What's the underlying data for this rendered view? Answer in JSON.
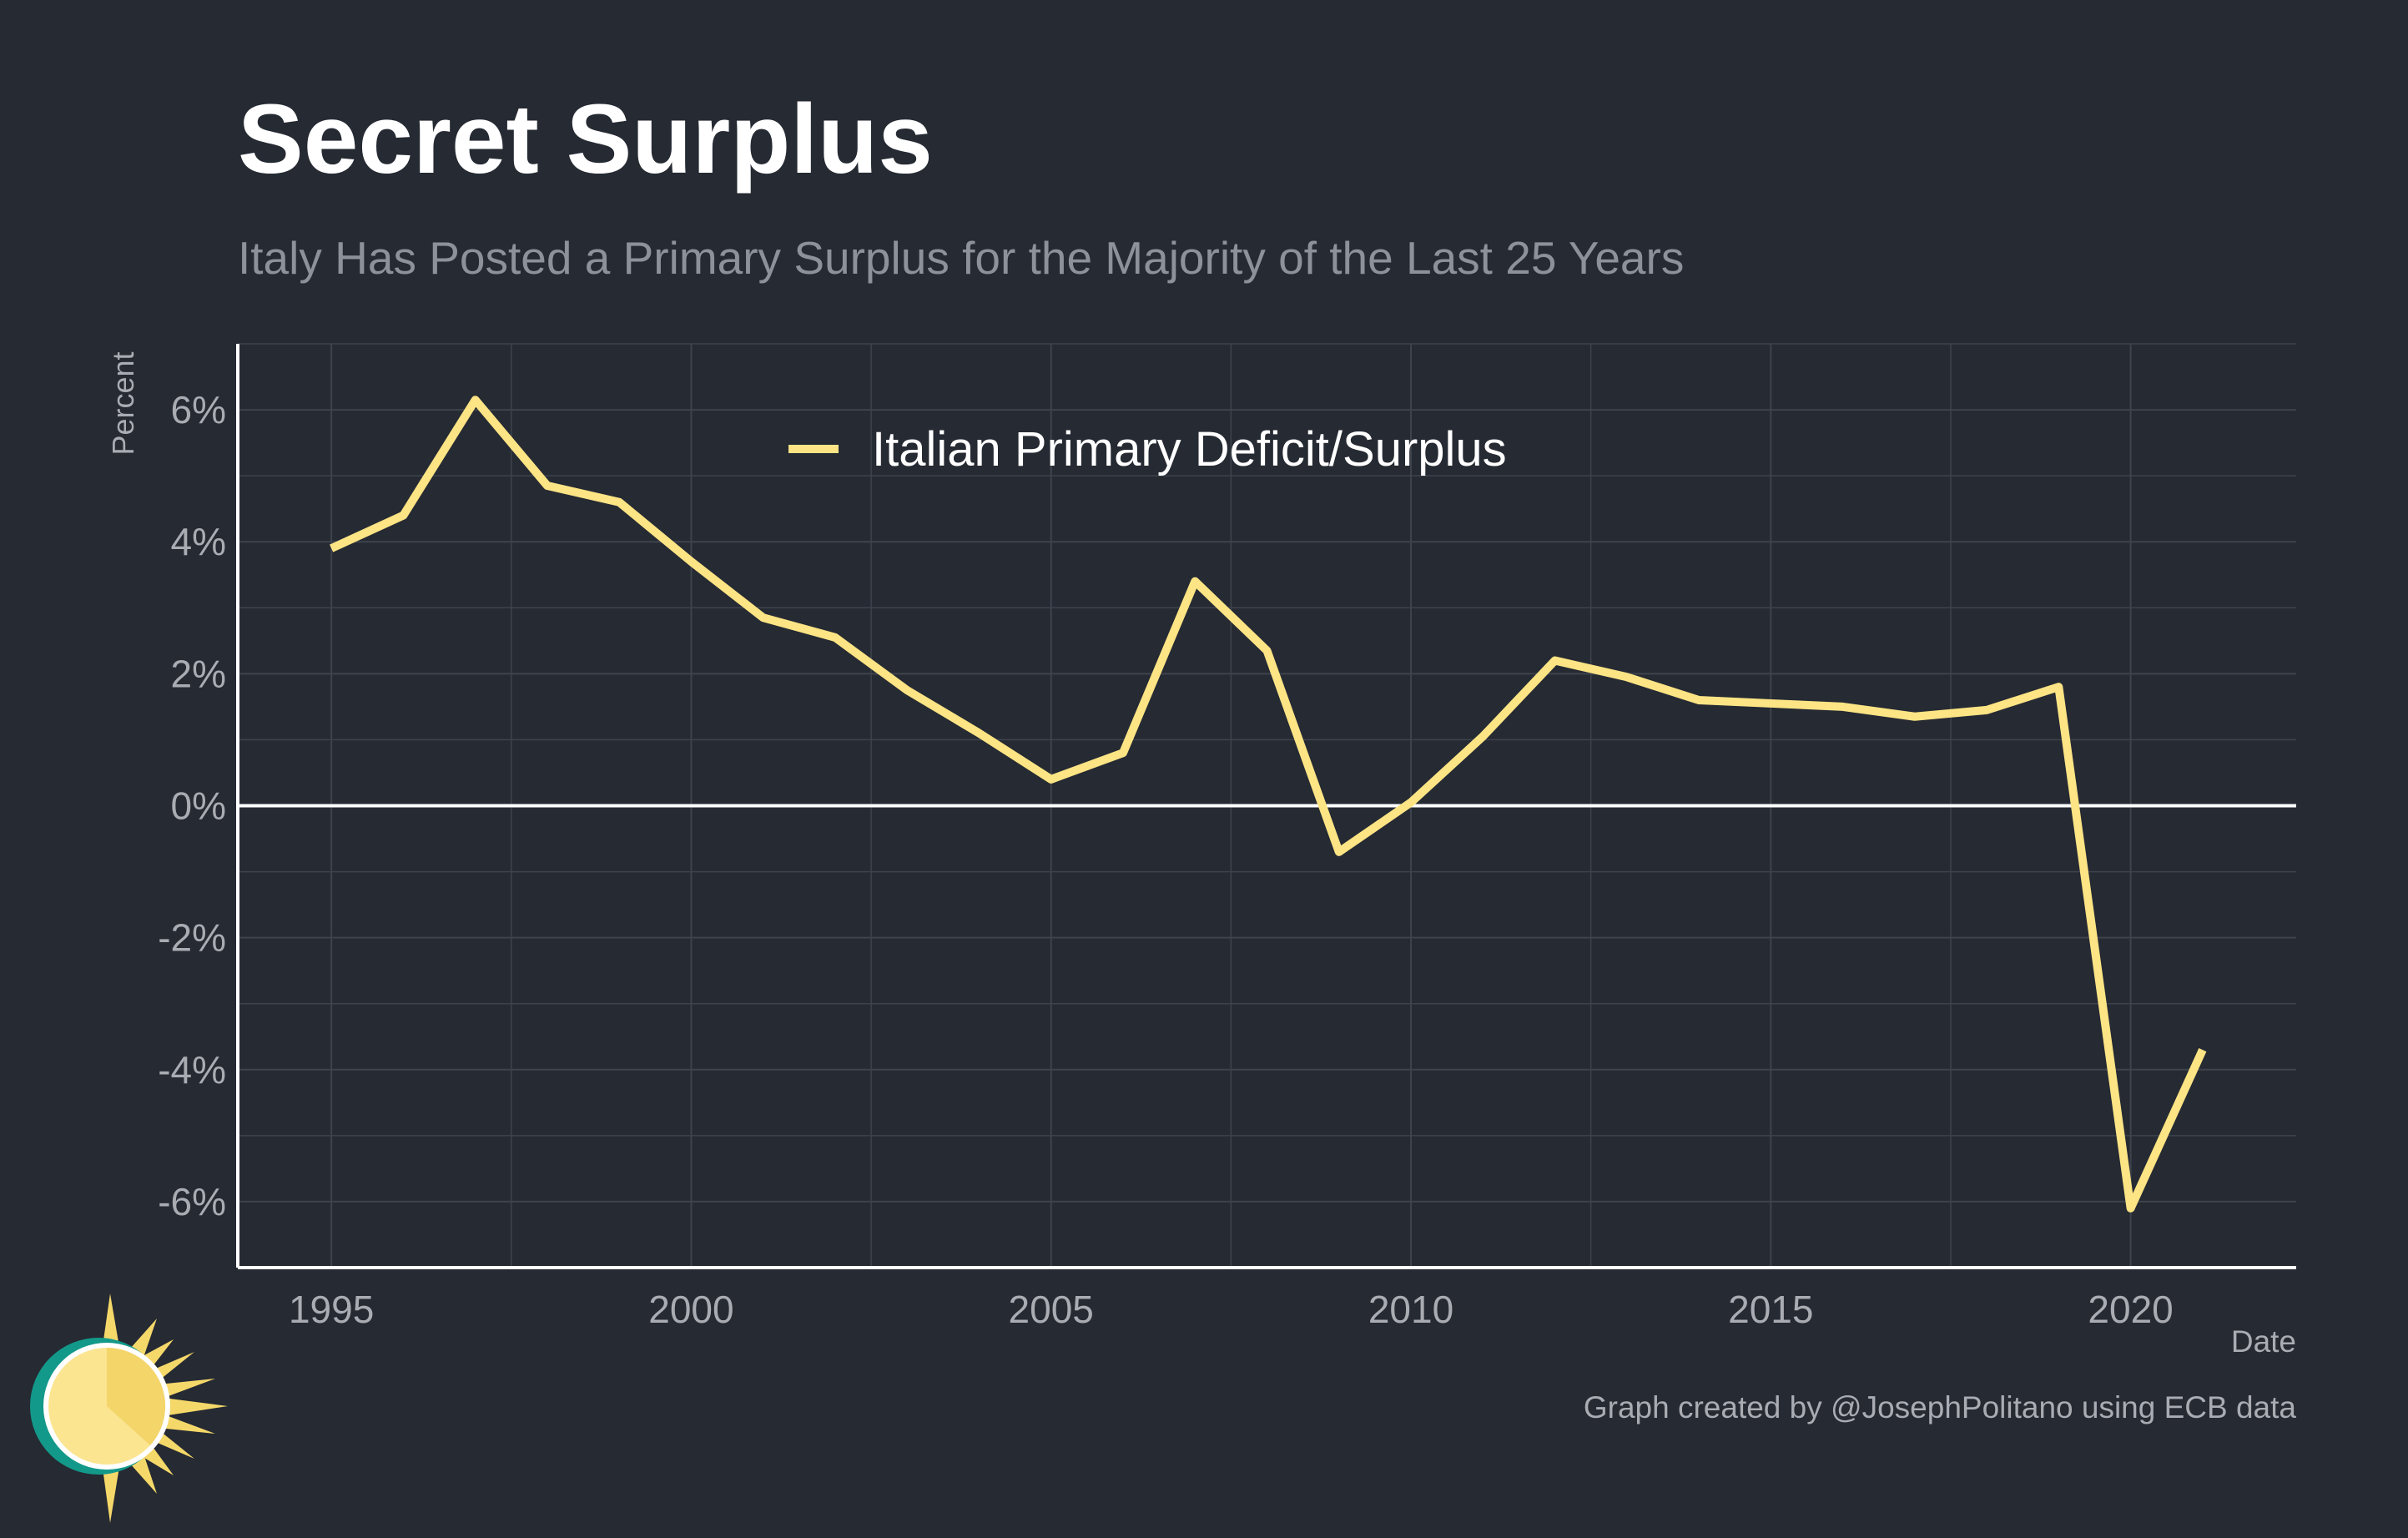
{
  "title": "Secret Surplus",
  "subtitle": "Italy Has Posted a Primary Surplus for the Majority of the Last 25 Years",
  "caption": "Graph created by @JosephPolitano using ECB data",
  "colors": {
    "background": "#252a33",
    "line": "#fde484",
    "grid": "#3e434c",
    "axis": "#ffffff",
    "tick_text": "#a9acb2"
  },
  "chart_data": {
    "type": "line",
    "xlabel": "Date",
    "ylabel": "Percent",
    "xlim": [
      1993.7,
      2022.3
    ],
    "ylim": [
      -7,
      7
    ],
    "x_ticks": [
      1995,
      2000,
      2005,
      2010,
      2015,
      2020
    ],
    "x_tick_labels": [
      "1995",
      "2000",
      "2005",
      "2010",
      "2015",
      "2020"
    ],
    "y_ticks": [
      -6,
      -4,
      -2,
      0,
      2,
      4,
      6
    ],
    "y_tick_labels": [
      "-6%",
      "-4%",
      "-2%",
      "0%",
      "2%",
      "4%",
      "6%"
    ],
    "grid": true,
    "legend_position": "top-center",
    "series": [
      {
        "name": "Italian Primary Deficit/Surplus",
        "x": [
          1995,
          1996,
          1997,
          1998,
          1999,
          2000,
          2001,
          2002,
          2003,
          2004,
          2005,
          2006,
          2007,
          2008,
          2009,
          2010,
          2011,
          2012,
          2013,
          2014,
          2015,
          2016,
          2017,
          2018,
          2019,
          2020,
          2021
        ],
        "y": [
          3.9,
          4.4,
          6.15,
          4.85,
          4.6,
          3.7,
          2.85,
          2.55,
          1.75,
          1.1,
          0.4,
          0.8,
          3.4,
          2.35,
          -0.7,
          0.05,
          1.05,
          2.2,
          1.95,
          1.6,
          1.55,
          1.5,
          1.35,
          1.45,
          1.8,
          -6.1,
          -3.7
        ]
      }
    ]
  },
  "logo": {
    "icon": "sun-logo-icon"
  }
}
